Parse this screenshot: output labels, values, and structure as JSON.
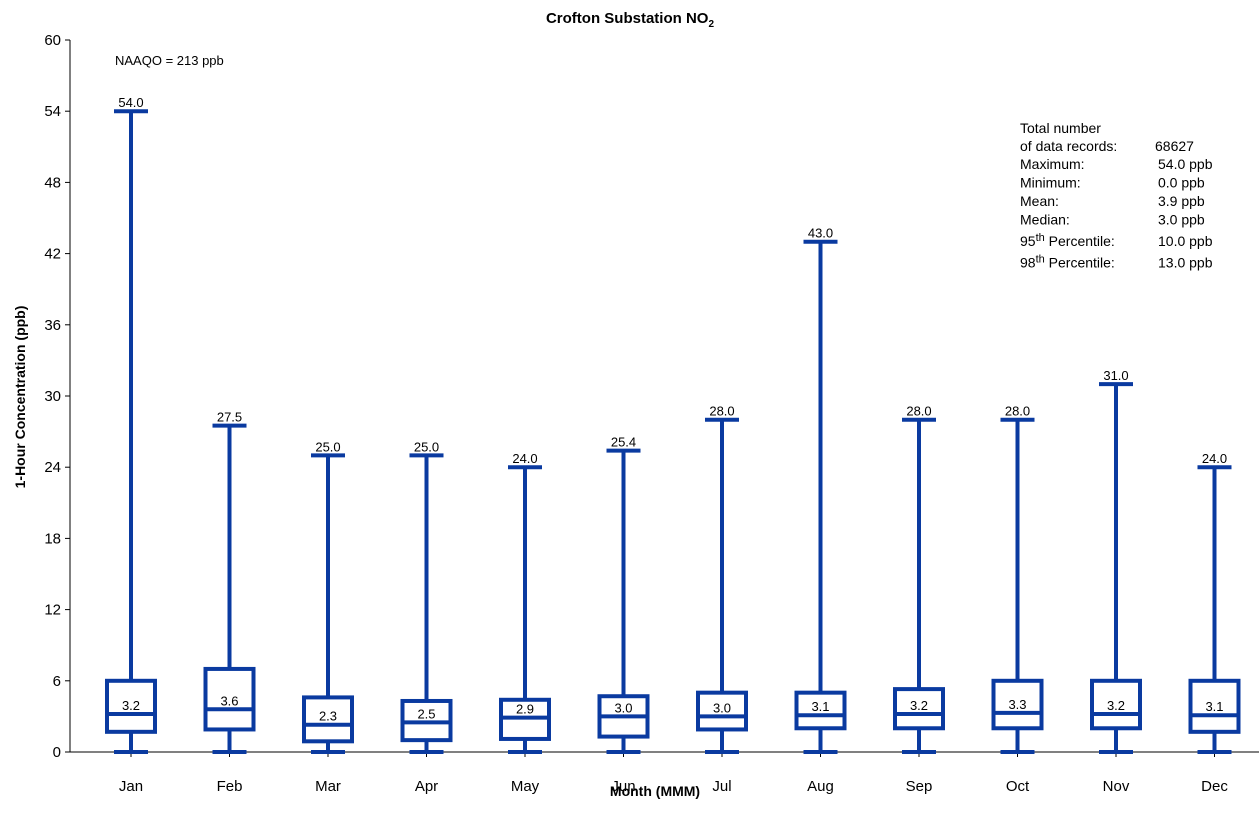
{
  "chart_data": {
    "type": "boxplot",
    "title": "Crofton Substation NO",
    "title_subscript": "2",
    "xlabel": "Month (MMM)",
    "ylabel": "1-Hour Concentration (ppb)",
    "ylim": [
      0,
      60
    ],
    "yticks": [
      "0",
      "6",
      "12",
      "18",
      "24",
      "30",
      "36",
      "42",
      "48",
      "54",
      "60"
    ],
    "annotation": "NAAQO = 213 ppb",
    "color": "#0a3aa0",
    "grid": false,
    "categories": [
      "Jan",
      "Feb",
      "Mar",
      "Apr",
      "May",
      "Jun",
      "Jul",
      "Aug",
      "Sep",
      "Oct",
      "Nov",
      "Dec"
    ],
    "boxes": [
      {
        "min": 0,
        "q1": 1.7,
        "median": 3.2,
        "q3": 6.0,
        "max": 54.0,
        "median_label": "3.2",
        "max_label": "54.0"
      },
      {
        "min": 0,
        "q1": 1.9,
        "median": 3.6,
        "q3": 7.0,
        "max": 27.5,
        "median_label": "3.6",
        "max_label": "27.5"
      },
      {
        "min": 0,
        "q1": 0.9,
        "median": 2.3,
        "q3": 4.6,
        "max": 25.0,
        "median_label": "2.3",
        "max_label": "25.0"
      },
      {
        "min": 0,
        "q1": 1.0,
        "median": 2.5,
        "q3": 4.3,
        "max": 25.0,
        "median_label": "2.5",
        "max_label": "25.0"
      },
      {
        "min": 0,
        "q1": 1.1,
        "median": 2.9,
        "q3": 4.4,
        "max": 24.0,
        "median_label": "2.9",
        "max_label": "24.0"
      },
      {
        "min": 0,
        "q1": 1.3,
        "median": 3.0,
        "q3": 4.7,
        "max": 25.4,
        "median_label": "3.0",
        "max_label": "25.4"
      },
      {
        "min": 0,
        "q1": 1.9,
        "median": 3.0,
        "q3": 5.0,
        "max": 28.0,
        "median_label": "3.0",
        "max_label": "28.0"
      },
      {
        "min": 0,
        "q1": 2.0,
        "median": 3.1,
        "q3": 5.0,
        "max": 43.0,
        "median_label": "3.1",
        "max_label": "43.0"
      },
      {
        "min": 0,
        "q1": 2.0,
        "median": 3.2,
        "q3": 5.3,
        "max": 28.0,
        "median_label": "3.2",
        "max_label": "28.0"
      },
      {
        "min": 0,
        "q1": 2.0,
        "median": 3.3,
        "q3": 6.0,
        "max": 28.0,
        "median_label": "3.3",
        "max_label": "28.0"
      },
      {
        "min": 0,
        "q1": 2.0,
        "median": 3.2,
        "q3": 6.0,
        "max": 31.0,
        "median_label": "3.2",
        "max_label": "31.0"
      },
      {
        "min": 0,
        "q1": 1.7,
        "median": 3.1,
        "q3": 6.0,
        "max": 24.0,
        "median_label": "3.1",
        "max_label": "24.0"
      }
    ]
  },
  "stats": {
    "total_label_1": "Total number",
    "total_label_2": "of data records:",
    "total_value": "68627",
    "rows": [
      {
        "label": "Maximum:",
        "sup": "",
        "value": "54.0 ppb"
      },
      {
        "label": "Minimum:",
        "sup": "",
        "value": "0.0 ppb"
      },
      {
        "label": "Mean:",
        "sup": "",
        "value": "3.9 ppb"
      },
      {
        "label": "Median:",
        "sup": "",
        "value": "3.0 ppb"
      },
      {
        "label_pre": "95",
        "sup": "th",
        "label": " Percentile:",
        "value": "10.0 ppb"
      },
      {
        "label_pre": "98",
        "sup": "th",
        "label": " Percentile:",
        "value": "13.0 ppb"
      }
    ]
  }
}
